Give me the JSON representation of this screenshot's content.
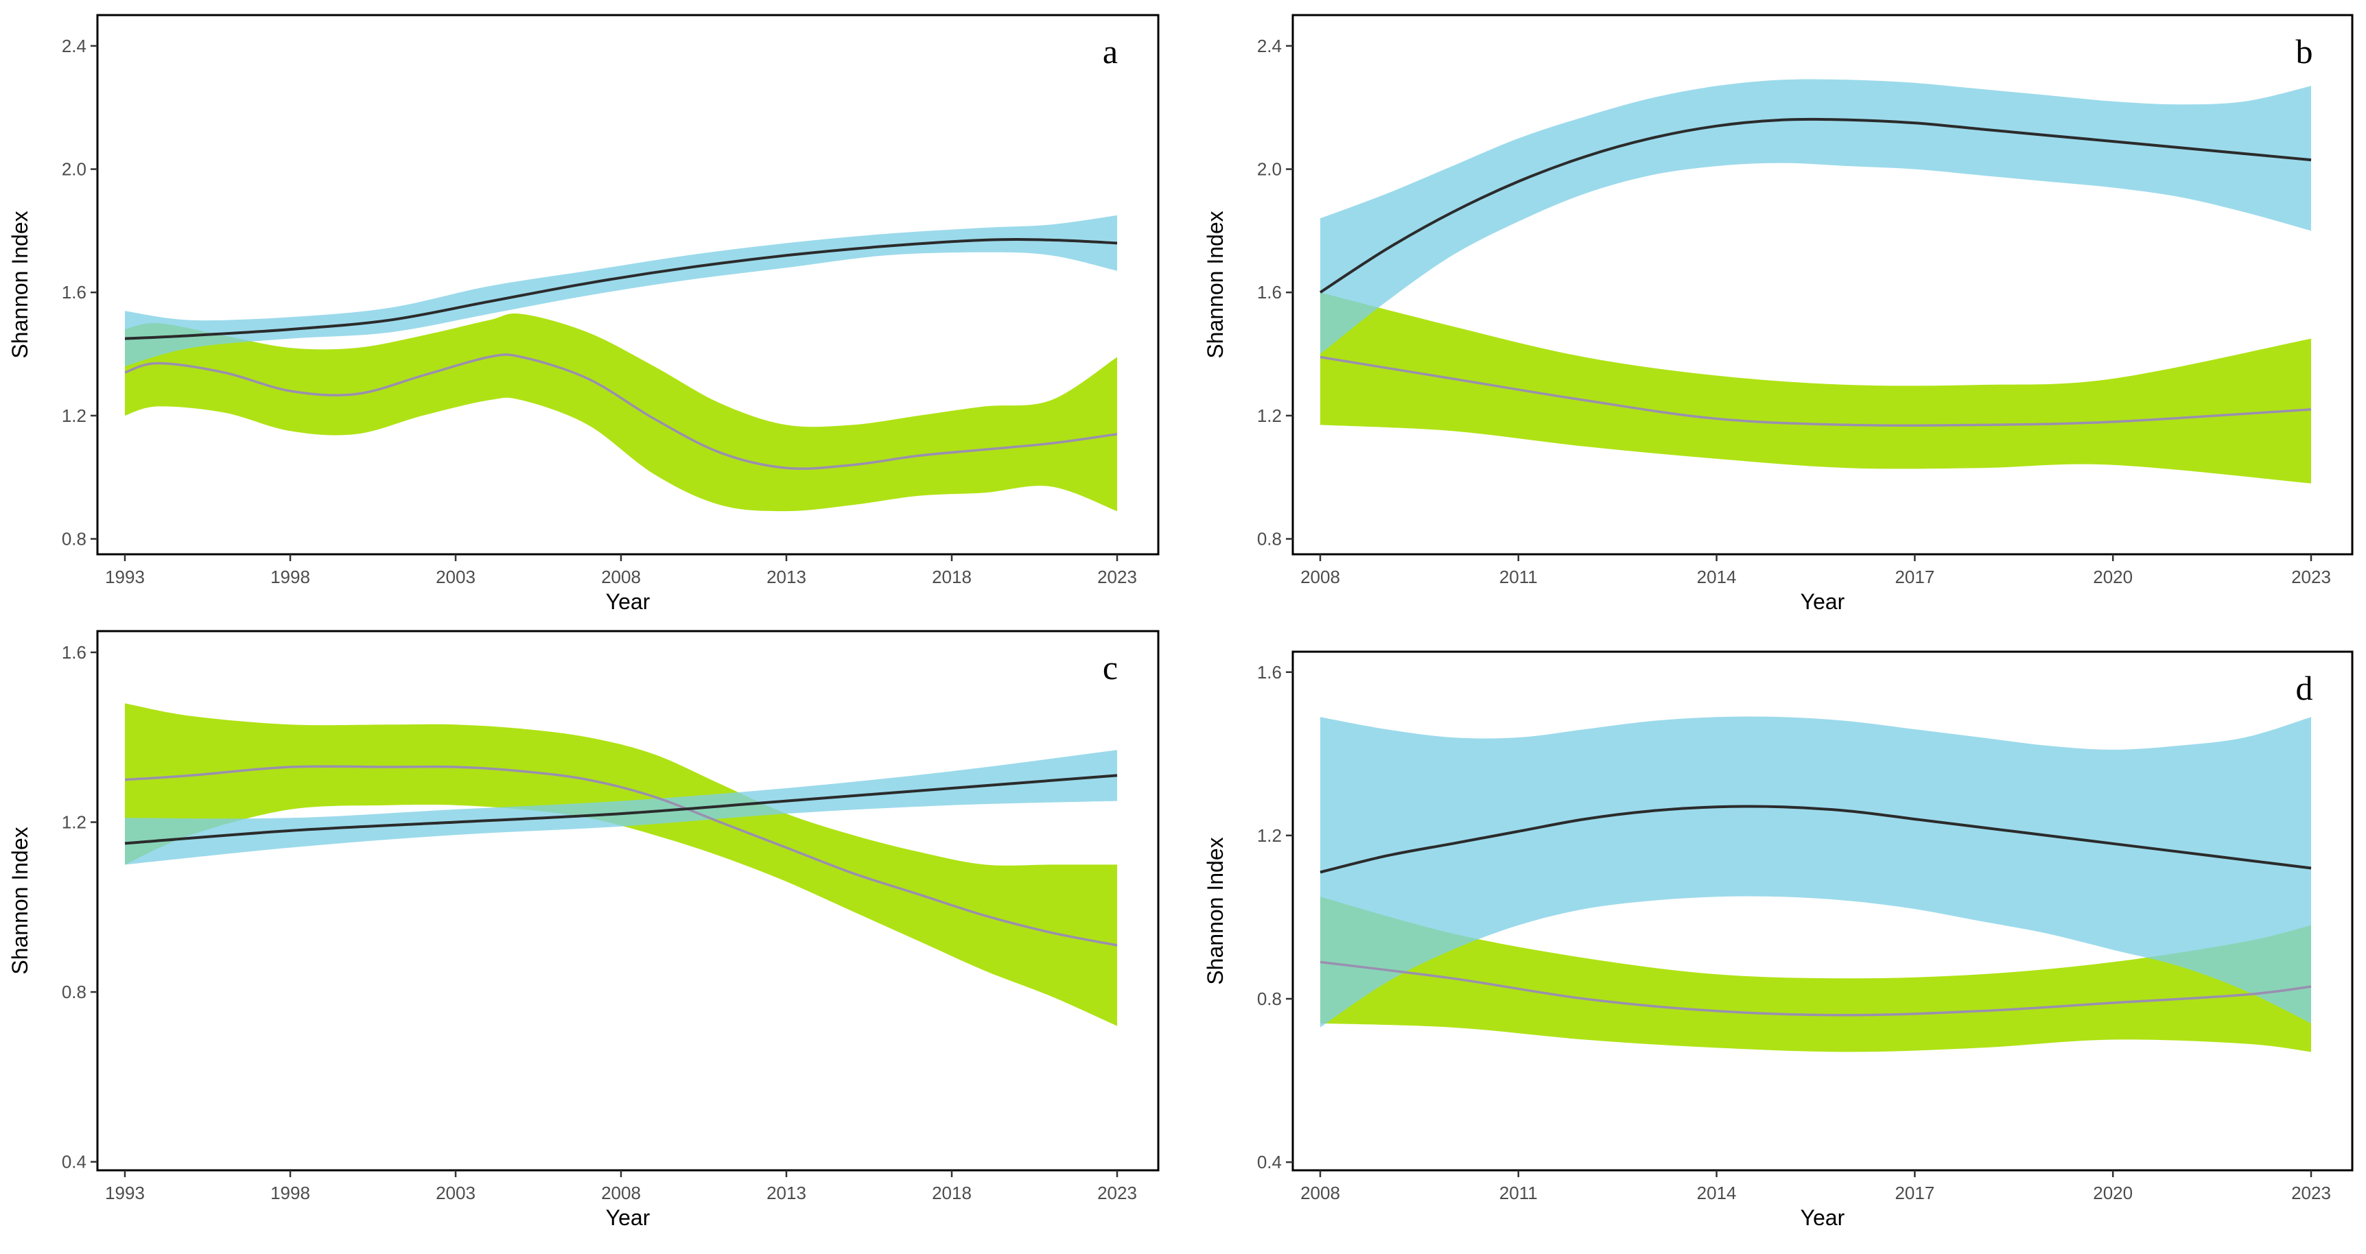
{
  "colors": {
    "blue_band": "#7fd0e6",
    "green_band": "#a8e000",
    "overlap_band": "#9aa8d0",
    "blue_line": "#2b2b2b",
    "green_line": "#9a8fb0"
  },
  "chart_data": [
    {
      "type": "area",
      "panel_label": "a",
      "xlabel": "Year",
      "ylabel": "Shannon Index",
      "xlim": [
        1993,
        2023
      ],
      "ylim": [
        0.75,
        2.5
      ],
      "xticks": [
        1993,
        1998,
        2003,
        2008,
        2013,
        2018,
        2023
      ],
      "yticks": [
        0.8,
        1.2,
        1.6,
        2.0,
        2.4
      ],
      "ytick_labels": [
        "0.8",
        "1.2",
        "1.6",
        "2.0",
        "2.4"
      ],
      "grid": false,
      "series": [
        {
          "color": "blue",
          "x": [
            1993,
            1995,
            1998,
            2001,
            2004,
            2007,
            2010,
            2013,
            2016,
            2019,
            2021,
            2023
          ],
          "y": [
            1.45,
            1.46,
            1.48,
            1.51,
            1.57,
            1.63,
            1.68,
            1.72,
            1.75,
            1.77,
            1.77,
            1.76
          ],
          "lower": [
            1.36,
            1.42,
            1.45,
            1.47,
            1.53,
            1.59,
            1.64,
            1.68,
            1.72,
            1.73,
            1.72,
            1.67
          ],
          "upper": [
            1.54,
            1.51,
            1.52,
            1.55,
            1.62,
            1.67,
            1.72,
            1.76,
            1.79,
            1.81,
            1.82,
            1.85
          ]
        },
        {
          "color": "green",
          "x": [
            1993,
            1994,
            1996,
            1998,
            2000,
            2002,
            2004,
            2005,
            2007,
            2009,
            2011,
            2013,
            2015,
            2017,
            2019,
            2021,
            2023
          ],
          "y": [
            1.34,
            1.37,
            1.34,
            1.28,
            1.27,
            1.33,
            1.39,
            1.39,
            1.32,
            1.19,
            1.08,
            1.03,
            1.04,
            1.07,
            1.09,
            1.11,
            1.14
          ],
          "lower": [
            1.2,
            1.23,
            1.21,
            1.15,
            1.14,
            1.2,
            1.25,
            1.25,
            1.17,
            1.01,
            0.91,
            0.89,
            0.91,
            0.94,
            0.95,
            0.97,
            0.89
          ],
          "upper": [
            1.48,
            1.5,
            1.46,
            1.42,
            1.42,
            1.46,
            1.51,
            1.53,
            1.47,
            1.36,
            1.24,
            1.17,
            1.17,
            1.2,
            1.23,
            1.25,
            1.39
          ]
        }
      ]
    },
    {
      "type": "area",
      "panel_label": "b",
      "xlabel": "Year",
      "ylabel": "Shannon Index",
      "xlim": [
        2008,
        2023
      ],
      "ylim": [
        0.75,
        2.5
      ],
      "xticks": [
        2008,
        2011,
        2014,
        2017,
        2020,
        2023
      ],
      "yticks": [
        0.8,
        1.2,
        1.6,
        2.0,
        2.4
      ],
      "ytick_labels": [
        "0.8",
        "1.2",
        "1.6",
        "2.0",
        "2.4"
      ],
      "grid": false,
      "series": [
        {
          "color": "blue",
          "x": [
            2008,
            2009,
            2010,
            2011,
            2012,
            2013,
            2014,
            2015,
            2016,
            2017,
            2018,
            2019,
            2020,
            2021,
            2022,
            2023
          ],
          "y": [
            1.6,
            1.74,
            1.86,
            1.96,
            2.04,
            2.1,
            2.14,
            2.16,
            2.16,
            2.15,
            2.13,
            2.11,
            2.09,
            2.07,
            2.05,
            2.03
          ],
          "lower": [
            1.4,
            1.57,
            1.72,
            1.83,
            1.92,
            1.98,
            2.01,
            2.02,
            2.01,
            2.0,
            1.98,
            1.96,
            1.94,
            1.91,
            1.86,
            1.8
          ],
          "upper": [
            1.84,
            1.92,
            2.01,
            2.1,
            2.17,
            2.23,
            2.27,
            2.29,
            2.29,
            2.28,
            2.26,
            2.24,
            2.22,
            2.21,
            2.22,
            2.27
          ]
        },
        {
          "color": "green",
          "x": [
            2008,
            2010,
            2012,
            2014,
            2016,
            2018,
            2020,
            2023
          ],
          "y": [
            1.39,
            1.32,
            1.25,
            1.19,
            1.17,
            1.17,
            1.18,
            1.22
          ],
          "lower": [
            1.17,
            1.15,
            1.1,
            1.06,
            1.03,
            1.03,
            1.04,
            0.98
          ],
          "upper": [
            1.6,
            1.49,
            1.39,
            1.33,
            1.3,
            1.3,
            1.32,
            1.45
          ]
        }
      ]
    },
    {
      "type": "area",
      "panel_label": "c",
      "xlabel": "Year",
      "ylabel": "Shannon Index",
      "xlim": [
        1993,
        2023
      ],
      "ylim": [
        0.38,
        1.65
      ],
      "xticks": [
        1993,
        1998,
        2003,
        2008,
        2013,
        2018,
        2023
      ],
      "yticks": [
        0.4,
        0.8,
        1.2,
        1.6
      ],
      "ytick_labels": [
        "0.4",
        "0.8",
        "1.2",
        "1.6"
      ],
      "grid": false,
      "series": [
        {
          "color": "blue",
          "x": [
            1993,
            1998,
            2003,
            2008,
            2013,
            2018,
            2023
          ],
          "y": [
            1.15,
            1.18,
            1.2,
            1.22,
            1.25,
            1.28,
            1.31
          ],
          "lower": [
            1.1,
            1.14,
            1.17,
            1.19,
            1.22,
            1.24,
            1.25
          ],
          "upper": [
            1.21,
            1.21,
            1.23,
            1.25,
            1.28,
            1.32,
            1.37
          ]
        },
        {
          "color": "green",
          "x": [
            1993,
            1995,
            1998,
            2001,
            2003,
            2005,
            2007,
            2009,
            2011,
            2013,
            2015,
            2017,
            2019,
            2021,
            2023
          ],
          "y": [
            1.3,
            1.31,
            1.33,
            1.33,
            1.33,
            1.32,
            1.3,
            1.26,
            1.2,
            1.14,
            1.08,
            1.03,
            0.98,
            0.94,
            0.91
          ],
          "lower": [
            1.1,
            1.17,
            1.23,
            1.24,
            1.24,
            1.23,
            1.21,
            1.17,
            1.12,
            1.06,
            0.99,
            0.92,
            0.85,
            0.79,
            0.72
          ],
          "upper": [
            1.48,
            1.45,
            1.43,
            1.43,
            1.43,
            1.42,
            1.4,
            1.36,
            1.29,
            1.22,
            1.17,
            1.13,
            1.1,
            1.1,
            1.1
          ]
        }
      ]
    },
    {
      "type": "area",
      "panel_label": "d",
      "xlabel": "Year",
      "ylabel": "Shannon Index",
      "xlim": [
        2008,
        2023
      ],
      "ylim": [
        0.38,
        1.65
      ],
      "xticks": [
        2008,
        2011,
        2014,
        2017,
        2020,
        2023
      ],
      "yticks": [
        0.4,
        0.8,
        1.2,
        1.6
      ],
      "ytick_labels": [
        "0.4",
        "0.8",
        "1.2",
        "1.6"
      ],
      "grid": false,
      "series": [
        {
          "color": "blue",
          "x": [
            2008,
            2009,
            2010,
            2011,
            2012,
            2013,
            2014,
            2015,
            2016,
            2017,
            2018,
            2019,
            2020,
            2021,
            2022,
            2023
          ],
          "y": [
            1.11,
            1.15,
            1.18,
            1.21,
            1.24,
            1.26,
            1.27,
            1.27,
            1.26,
            1.24,
            1.22,
            1.2,
            1.18,
            1.16,
            1.14,
            1.12
          ],
          "lower": [
            0.73,
            0.84,
            0.92,
            0.98,
            1.02,
            1.04,
            1.05,
            1.05,
            1.04,
            1.02,
            0.99,
            0.96,
            0.92,
            0.88,
            0.82,
            0.74
          ],
          "upper": [
            1.49,
            1.46,
            1.44,
            1.44,
            1.46,
            1.48,
            1.49,
            1.49,
            1.48,
            1.46,
            1.44,
            1.42,
            1.41,
            1.42,
            1.44,
            1.49
          ]
        },
        {
          "color": "green",
          "x": [
            2008,
            2010,
            2012,
            2014,
            2016,
            2018,
            2020,
            2022,
            2023
          ],
          "y": [
            0.89,
            0.85,
            0.8,
            0.77,
            0.76,
            0.77,
            0.79,
            0.81,
            0.83
          ],
          "lower": [
            0.74,
            0.73,
            0.7,
            0.68,
            0.67,
            0.68,
            0.7,
            0.69,
            0.67
          ],
          "upper": [
            1.05,
            0.96,
            0.9,
            0.86,
            0.85,
            0.86,
            0.89,
            0.94,
            0.98
          ]
        }
      ]
    }
  ]
}
